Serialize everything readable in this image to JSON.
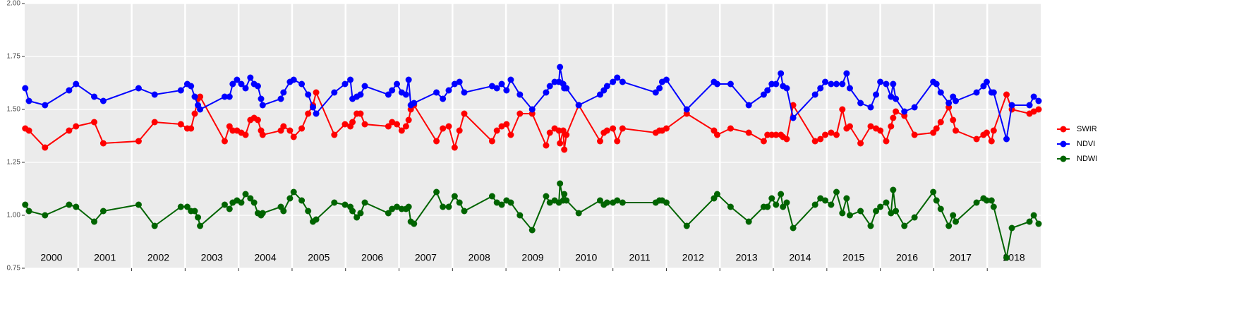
{
  "chart_data": {
    "type": "line",
    "x": [
      2000.01,
      2000.08,
      2000.38,
      2000.83,
      2000.96,
      2001.3,
      2001.47,
      2002.13,
      2002.43,
      2002.92,
      2003.04,
      2003.11,
      2003.18,
      2003.24,
      2003.28,
      2003.74,
      2003.83,
      2003.89,
      2003.97,
      2004.05,
      2004.13,
      2004.22,
      2004.29,
      2004.36,
      2004.42,
      2004.45,
      2004.79,
      2004.84,
      2004.96,
      2005.03,
      2005.18,
      2005.3,
      2005.39,
      2005.45,
      2005.79,
      2005.99,
      2006.09,
      2006.13,
      2006.21,
      2006.28,
      2006.36,
      2006.8,
      2006.87,
      2006.96,
      2007.05,
      2007.13,
      2007.18,
      2007.22,
      2007.28,
      2007.7,
      2007.82,
      2007.93,
      2008.04,
      2008.13,
      2008.22,
      2008.74,
      2008.83,
      2008.92,
      2009.01,
      2009.09,
      2009.26,
      2009.49,
      2009.75,
      2009.82,
      2009.91,
      2009.99,
      2010.01,
      2010.07,
      2010.09,
      2010.13,
      2010.36,
      2010.76,
      2010.83,
      2010.89,
      2011.0,
      2011.08,
      2011.18,
      2011.8,
      2011.87,
      2011.92,
      2012.0,
      2012.38,
      2012.89,
      2012.95,
      2013.2,
      2013.54,
      2013.82,
      2013.89,
      2013.97,
      2014.05,
      2014.14,
      2014.18,
      2014.25,
      2014.37,
      2014.78,
      2014.88,
      2014.97,
      2015.08,
      2015.18,
      2015.29,
      2015.37,
      2015.43,
      2015.63,
      2015.82,
      2015.92,
      2016.0,
      2016.11,
      2016.2,
      2016.24,
      2016.29,
      2016.45,
      2016.64,
      2016.99,
      2017.05,
      2017.13,
      2017.28,
      2017.36,
      2017.41,
      2017.8,
      2017.93,
      2017.99,
      2018.08,
      2018.12,
      2018.36,
      2018.46,
      2018.79,
      2018.87,
      2018.96
    ],
    "series": [
      {
        "name": "SWIR",
        "color": "#ff0000",
        "values": [
          1.41,
          1.4,
          1.32,
          1.4,
          1.42,
          1.44,
          1.34,
          1.35,
          1.44,
          1.43,
          1.41,
          1.41,
          1.48,
          1.55,
          1.56,
          1.35,
          1.42,
          1.4,
          1.4,
          1.39,
          1.38,
          1.45,
          1.46,
          1.45,
          1.4,
          1.38,
          1.4,
          1.42,
          1.4,
          1.37,
          1.41,
          1.48,
          1.52,
          1.58,
          1.38,
          1.43,
          1.42,
          1.44,
          1.48,
          1.48,
          1.43,
          1.42,
          1.44,
          1.43,
          1.4,
          1.42,
          1.45,
          1.5,
          1.52,
          1.35,
          1.41,
          1.42,
          1.32,
          1.4,
          1.48,
          1.35,
          1.4,
          1.42,
          1.43,
          1.38,
          1.48,
          1.48,
          1.33,
          1.39,
          1.41,
          1.4,
          1.34,
          1.4,
          1.31,
          1.38,
          1.52,
          1.35,
          1.39,
          1.4,
          1.41,
          1.35,
          1.41,
          1.39,
          1.4,
          1.4,
          1.41,
          1.48,
          1.4,
          1.38,
          1.41,
          1.39,
          1.35,
          1.38,
          1.38,
          1.38,
          1.38,
          1.37,
          1.36,
          1.52,
          1.35,
          1.36,
          1.38,
          1.39,
          1.38,
          1.5,
          1.41,
          1.42,
          1.34,
          1.42,
          1.41,
          1.4,
          1.35,
          1.42,
          1.46,
          1.49,
          1.47,
          1.38,
          1.39,
          1.41,
          1.44,
          1.51,
          1.45,
          1.4,
          1.36,
          1.38,
          1.39,
          1.35,
          1.4,
          1.57,
          1.5,
          1.48,
          1.49,
          1.5
        ]
      },
      {
        "name": "NDVI",
        "color": "#0000ff",
        "values": [
          1.6,
          1.54,
          1.52,
          1.59,
          1.62,
          1.56,
          1.54,
          1.6,
          1.57,
          1.59,
          1.62,
          1.61,
          1.56,
          1.52,
          1.5,
          1.56,
          1.56,
          1.62,
          1.64,
          1.62,
          1.6,
          1.65,
          1.62,
          1.61,
          1.55,
          1.52,
          1.55,
          1.58,
          1.63,
          1.64,
          1.62,
          1.57,
          1.51,
          1.48,
          1.58,
          1.62,
          1.64,
          1.55,
          1.56,
          1.57,
          1.61,
          1.57,
          1.59,
          1.62,
          1.58,
          1.57,
          1.64,
          1.52,
          1.53,
          1.58,
          1.55,
          1.59,
          1.62,
          1.63,
          1.58,
          1.61,
          1.6,
          1.62,
          1.59,
          1.64,
          1.57,
          1.5,
          1.58,
          1.61,
          1.63,
          1.63,
          1.7,
          1.62,
          1.6,
          1.6,
          1.52,
          1.57,
          1.59,
          1.61,
          1.63,
          1.65,
          1.63,
          1.58,
          1.6,
          1.63,
          1.64,
          1.5,
          1.63,
          1.62,
          1.62,
          1.52,
          1.57,
          1.59,
          1.62,
          1.62,
          1.67,
          1.61,
          1.6,
          1.46,
          1.57,
          1.6,
          1.63,
          1.62,
          1.62,
          1.62,
          1.67,
          1.6,
          1.53,
          1.51,
          1.57,
          1.63,
          1.62,
          1.56,
          1.62,
          1.55,
          1.49,
          1.51,
          1.63,
          1.62,
          1.58,
          1.53,
          1.56,
          1.54,
          1.58,
          1.61,
          1.63,
          1.58,
          1.58,
          1.36,
          1.52,
          1.52,
          1.56,
          1.54
        ]
      },
      {
        "name": "NDWI",
        "color": "#006400",
        "values": [
          1.05,
          1.02,
          1.0,
          1.05,
          1.04,
          0.97,
          1.02,
          1.05,
          0.95,
          1.04,
          1.04,
          1.02,
          1.02,
          0.99,
          0.95,
          1.05,
          1.03,
          1.06,
          1.07,
          1.06,
          1.1,
          1.08,
          1.06,
          1.01,
          1.0,
          1.01,
          1.04,
          1.02,
          1.08,
          1.11,
          1.07,
          1.02,
          0.97,
          0.98,
          1.06,
          1.05,
          1.04,
          1.02,
          0.99,
          1.01,
          1.06,
          1.01,
          1.03,
          1.04,
          1.03,
          1.03,
          1.04,
          0.97,
          0.96,
          1.11,
          1.04,
          1.04,
          1.09,
          1.06,
          1.02,
          1.09,
          1.06,
          1.05,
          1.07,
          1.06,
          1.0,
          0.93,
          1.09,
          1.06,
          1.07,
          1.06,
          1.15,
          1.07,
          1.1,
          1.07,
          1.01,
          1.07,
          1.05,
          1.06,
          1.06,
          1.07,
          1.06,
          1.06,
          1.07,
          1.07,
          1.06,
          0.95,
          1.08,
          1.1,
          1.04,
          0.97,
          1.04,
          1.04,
          1.08,
          1.05,
          1.1,
          1.04,
          1.06,
          0.94,
          1.05,
          1.08,
          1.07,
          1.05,
          1.11,
          1.01,
          1.08,
          1.0,
          1.02,
          0.95,
          1.02,
          1.04,
          1.06,
          1.01,
          1.12,
          1.02,
          0.95,
          0.99,
          1.11,
          1.07,
          1.03,
          0.95,
          1.0,
          0.97,
          1.06,
          1.08,
          1.07,
          1.07,
          1.04,
          0.8,
          0.94,
          0.97,
          1.0,
          0.96
        ]
      }
    ],
    "xlim": [
      2000,
      2019
    ],
    "xticks": [
      {
        "value": 2000.5,
        "label": "2000"
      },
      {
        "value": 2001.5,
        "label": "2001"
      },
      {
        "value": 2002.5,
        "label": "2002"
      },
      {
        "value": 2003.5,
        "label": "2003"
      },
      {
        "value": 2004.5,
        "label": "2004"
      },
      {
        "value": 2005.5,
        "label": "2005"
      },
      {
        "value": 2006.5,
        "label": "2006"
      },
      {
        "value": 2007.5,
        "label": "2007"
      },
      {
        "value": 2008.5,
        "label": "2008"
      },
      {
        "value": 2009.5,
        "label": "2009"
      },
      {
        "value": 2010.5,
        "label": "2010"
      },
      {
        "value": 2011.5,
        "label": "2011"
      },
      {
        "value": 2012.5,
        "label": "2012"
      },
      {
        "value": 2013.5,
        "label": "2013"
      },
      {
        "value": 2014.5,
        "label": "2014"
      },
      {
        "value": 2015.5,
        "label": "2015"
      },
      {
        "value": 2016.5,
        "label": "2016"
      },
      {
        "value": 2017.5,
        "label": "2017"
      },
      {
        "value": 2018.5,
        "label": "2018"
      }
    ],
    "xgrid": [
      2001,
      2002,
      2003,
      2004,
      2005,
      2006,
      2007,
      2008,
      2009,
      2010,
      2011,
      2012,
      2013,
      2014,
      2015,
      2016,
      2017,
      2018
    ],
    "ylim": [
      0.75,
      2.0
    ],
    "yticks": [
      {
        "value": 0.75,
        "label": "0.75"
      },
      {
        "value": 1.0,
        "label": "1.00"
      },
      {
        "value": 1.25,
        "label": "1.25"
      },
      {
        "value": 1.5,
        "label": "1.50"
      },
      {
        "value": 1.75,
        "label": "1.75"
      },
      {
        "value": 2.0,
        "label": "2.00"
      }
    ],
    "grid": true,
    "legend": "right"
  }
}
